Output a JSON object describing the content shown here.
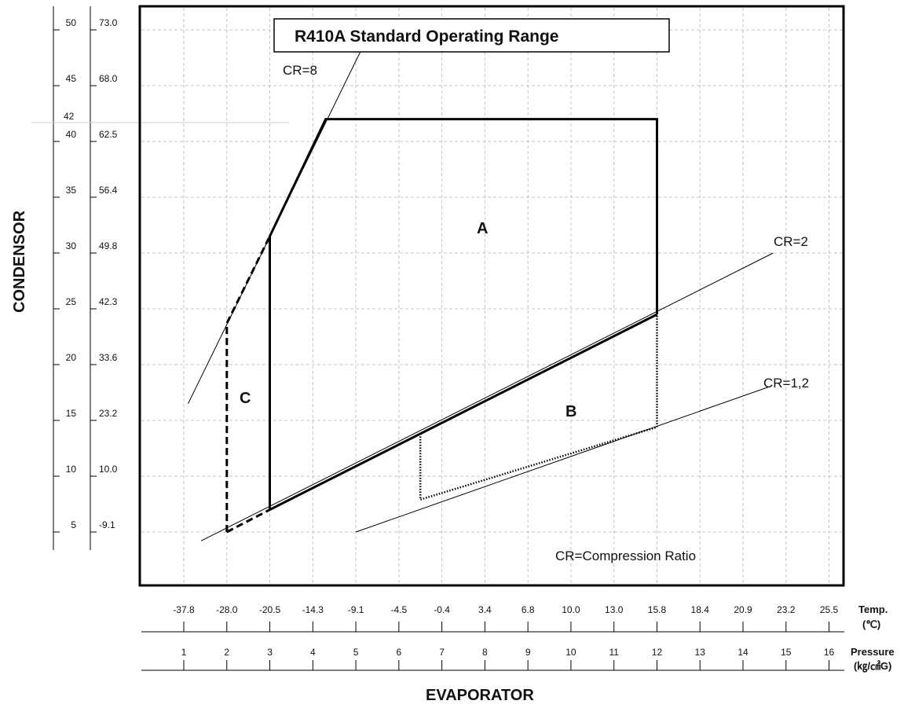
{
  "chart_data": {
    "type": "line",
    "title": "R410A Standard Operating Range",
    "xlabel": "EVAPORATOR",
    "ylabel": "CONDENSOR",
    "x_units": [
      "Temp.",
      "(℃)",
      "Pressure",
      "(㎏/㎠G)"
    ],
    "x_pressure_ticks": [
      "1",
      "2",
      "3",
      "4",
      "5",
      "6",
      "7",
      "8",
      "9",
      "10",
      "11",
      "12",
      "13",
      "14",
      "15",
      "16"
    ],
    "x_temp_ticks": [
      "-37.8",
      "-28.0",
      "-20.5",
      "-14.3",
      "-9.1",
      "-4.5",
      "-0.4",
      "3.4",
      "6.8",
      "10.0",
      "13.0",
      "15.8",
      "18.4",
      "20.9",
      "23.2",
      "25.5"
    ],
    "y_pressure_ticks": [
      "5",
      "10",
      "15",
      "20",
      "25",
      "30",
      "35",
      "40",
      "45",
      "50"
    ],
    "y_temp_ticks": [
      "-9.1",
      "10.0",
      "23.2",
      "33.6",
      "42.3",
      "49.8",
      "56.4",
      "62.5",
      "68.0",
      "73.0"
    ],
    "y_extra_tick": "42",
    "grid": true,
    "regions": [
      {
        "name": "A",
        "boundary": [
          [
            3,
            7
          ],
          [
            3,
            31.5
          ],
          [
            4.3,
            42
          ],
          [
            12,
            42
          ],
          [
            12,
            24.5
          ]
        ],
        "style": "solid"
      },
      {
        "name": "B",
        "boundary": [
          [
            6.5,
            13.8
          ],
          [
            6.5,
            7.9
          ],
          [
            12,
            14.4
          ],
          [
            12,
            24.5
          ]
        ],
        "style": "dotted"
      },
      {
        "name": "C",
        "boundary": [
          [
            2,
            5
          ],
          [
            2,
            23.7
          ],
          [
            3,
            31.5
          ],
          [
            3,
            7
          ]
        ],
        "style": "dashed"
      }
    ],
    "reference_lines": [
      {
        "name": "CR=8",
        "points": [
          [
            1.1,
            16.5
          ],
          [
            5.1,
            48
          ]
        ]
      },
      {
        "name": "CR=2",
        "points": [
          [
            1.4,
            4.2
          ],
          [
            14.7,
            30
          ]
        ]
      },
      {
        "name": "CR=1,2",
        "points": [
          [
            5,
            5
          ],
          [
            14.6,
            18
          ]
        ]
      }
    ],
    "annotation": "CR=Compression Ratio"
  }
}
